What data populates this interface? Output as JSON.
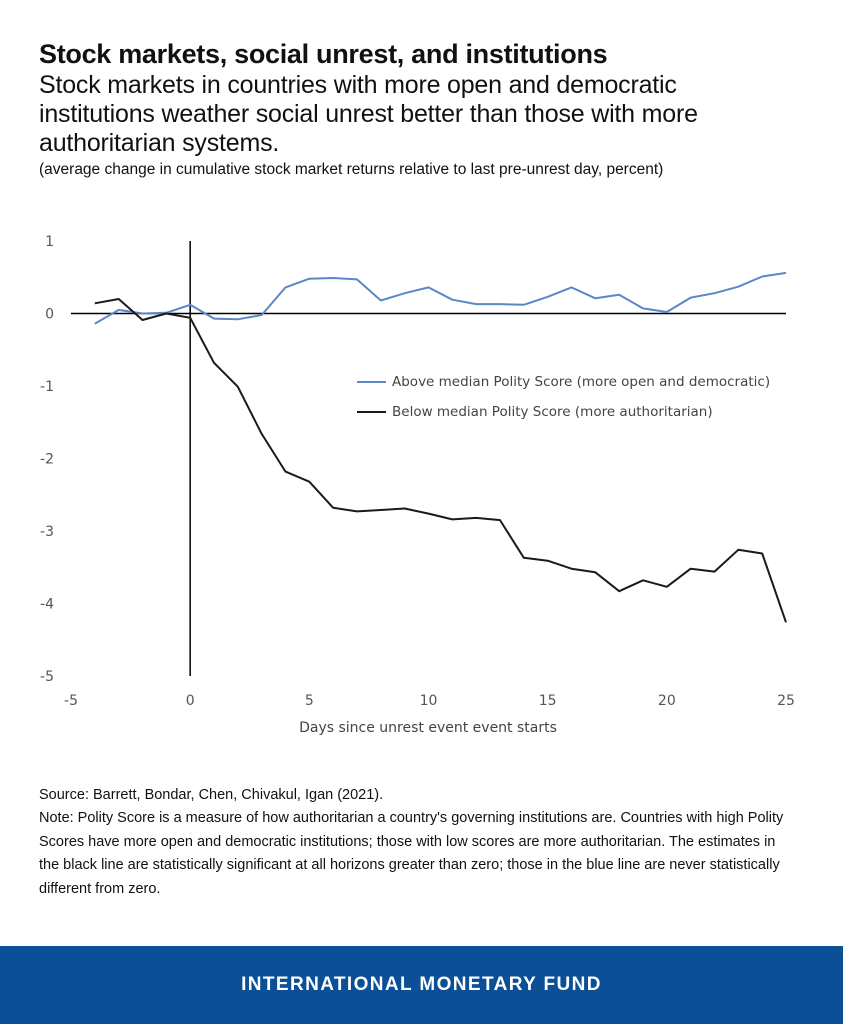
{
  "header": {
    "title": "Stock markets, social unrest, and institutions",
    "subtitle": "Stock markets in countries with more open and democratic institutions weather social unrest better than those with more authoritarian systems.",
    "units": "(average change in cumulative stock market returns relative to last pre-unrest day, percent)"
  },
  "chart_data": {
    "type": "line",
    "xlabel": "Days since unrest event event starts",
    "ylabel": "",
    "xlim": [
      -5,
      25
    ],
    "ylim": [
      -5,
      1
    ],
    "xticks": [
      "-5",
      "0",
      "5",
      "10",
      "15",
      "20",
      "25"
    ],
    "yticks": [
      "1",
      "0",
      "-1",
      "-2",
      "-3",
      "-4",
      "-5"
    ],
    "x": [
      -4,
      -3,
      -2,
      -1,
      0,
      1,
      2,
      3,
      4,
      5,
      6,
      7,
      8,
      9,
      10,
      11,
      12,
      13,
      14,
      15,
      16,
      17,
      18,
      19,
      20,
      21,
      22,
      23,
      24,
      25
    ],
    "series": [
      {
        "name": "Above median Polity Score (more open and democratic)",
        "color": "#5b86c8",
        "values": [
          -0.14,
          0.05,
          0.0,
          0.01,
          0.12,
          -0.07,
          -0.08,
          -0.02,
          0.36,
          0.48,
          0.49,
          0.47,
          0.18,
          0.28,
          0.36,
          0.19,
          0.13,
          0.13,
          0.12,
          0.23,
          0.36,
          0.21,
          0.26,
          0.07,
          0.02,
          0.22,
          0.28,
          0.37,
          0.51,
          0.56
        ]
      },
      {
        "name": "Below median Polity Score (more authoritarian)",
        "color": "#1a1a1a",
        "values": [
          0.14,
          0.2,
          -0.09,
          0.0,
          -0.06,
          -0.68,
          -1.01,
          -1.66,
          -2.18,
          -2.32,
          -2.68,
          -2.73,
          -2.71,
          -2.69,
          -2.76,
          -2.84,
          -2.82,
          -2.85,
          -3.37,
          -3.41,
          -3.52,
          -3.57,
          -3.83,
          -3.68,
          -3.77,
          -3.52,
          -3.56,
          -3.26,
          -3.31,
          -4.26
        ]
      }
    ],
    "legend_position": "center-right",
    "grid": false
  },
  "source": "Source: Barrett, Bondar, Chen, Chivakul, Igan (2021).",
  "note": "Note: Polity Score is a measure of how authoritarian a country's governing institutions are.  Countries with high Polity Scores have more open and democratic institutions; those with low scores are more authoritarian. The estimates in the black line are statistically significant at all horizons greater than zero; those in the blue line are never statistically different from zero.",
  "footer": {
    "label": "INTERNATIONAL MONETARY FUND",
    "color": "#0b4f96"
  }
}
